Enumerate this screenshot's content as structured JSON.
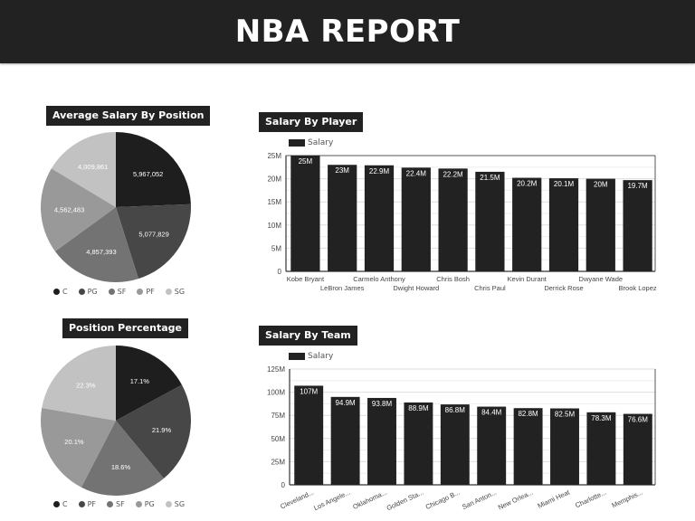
{
  "header": {
    "title": "NBA REPORT"
  },
  "colors": {
    "header_bg": "#222222",
    "bar": "#222222",
    "slice_1": "#1e1e1e",
    "slice_2": "#474747",
    "slice_3": "#737373",
    "slice_4": "#999999",
    "slice_5": "#c2c2c2"
  },
  "avg_salary_by_position": {
    "title": "Average Salary By Position",
    "legend": [
      "C",
      "PG",
      "SF",
      "PF",
      "SG"
    ]
  },
  "position_percentage": {
    "title": "Position Percentage",
    "legend": [
      "C",
      "PF",
      "SF",
      "PG",
      "SG"
    ]
  },
  "salary_by_player": {
    "title": "Salary By Player",
    "legend_label": "Salary"
  },
  "salary_by_team": {
    "title": "Salary By Team",
    "legend_label": "Salary"
  },
  "chart_data": [
    {
      "type": "pie",
      "title": "Average Salary By Position",
      "categories": [
        "C",
        "PG",
        "SF",
        "PF",
        "SG"
      ],
      "values": [
        5967052,
        5077829,
        4857393,
        4562483,
        4009861
      ],
      "labels": [
        "5,967,052",
        "5,077,829",
        "4,857,393",
        "4,562,483",
        "4,009,861"
      ],
      "legend_position": "bottom"
    },
    {
      "type": "pie",
      "title": "Position Percentage",
      "categories": [
        "C",
        "PF",
        "SF",
        "PG",
        "SG"
      ],
      "values": [
        17.1,
        21.9,
        18.6,
        20.1,
        22.3
      ],
      "labels": [
        "17.1%",
        "21.9%",
        "18.6%",
        "20.1%",
        "22.3%"
      ],
      "legend_position": "bottom"
    },
    {
      "type": "bar",
      "title": "Salary By Player",
      "categories": [
        "Kobe Bryant",
        "LeBron James",
        "Carmelo Anthony",
        "Dwight Howard",
        "Chris Bosh",
        "Chris Paul",
        "Kevin Durant",
        "Derrick Rose",
        "Dwyane Wade",
        "Brook Lopez"
      ],
      "series": [
        {
          "name": "Salary",
          "values": [
            25.0,
            23.0,
            22.9,
            22.4,
            22.2,
            21.5,
            20.2,
            20.1,
            20.0,
            19.7
          ]
        }
      ],
      "data_labels": [
        "25M",
        "23M",
        "22.9M",
        "22.4M",
        "22.2M",
        "21.5M",
        "20.2M",
        "20.1M",
        "20M",
        "19.7M"
      ],
      "xlabel": "",
      "ylabel": "",
      "yticks": [
        "0",
        "5M",
        "10M",
        "15M",
        "20M",
        "25M"
      ],
      "ylim": [
        0,
        25
      ],
      "unit": "M",
      "grid": true,
      "legend_position": "top-left"
    },
    {
      "type": "bar",
      "title": "Salary By Team",
      "categories": [
        "Cleveland...",
        "Los Angele...",
        "Oklahoma...",
        "Golden Sta...",
        "Chicago B...",
        "San Anton...",
        "New Orlea...",
        "Miami Heat",
        "Charlotte...",
        "Memphis..."
      ],
      "series": [
        {
          "name": "Salary",
          "values": [
            107.0,
            94.9,
            93.8,
            88.9,
            86.8,
            84.4,
            82.8,
            82.5,
            78.3,
            76.6
          ]
        }
      ],
      "data_labels": [
        "107M",
        "94.9M",
        "93.8M",
        "88.9M",
        "86.8M",
        "84.4M",
        "82.8M",
        "82.5M",
        "78.3M",
        "76.6M"
      ],
      "xlabel": "",
      "ylabel": "",
      "yticks": [
        "0",
        "25M",
        "50M",
        "75M",
        "100M",
        "125M"
      ],
      "ylim": [
        0,
        125
      ],
      "unit": "M",
      "grid": true,
      "legend_position": "top-left"
    }
  ]
}
